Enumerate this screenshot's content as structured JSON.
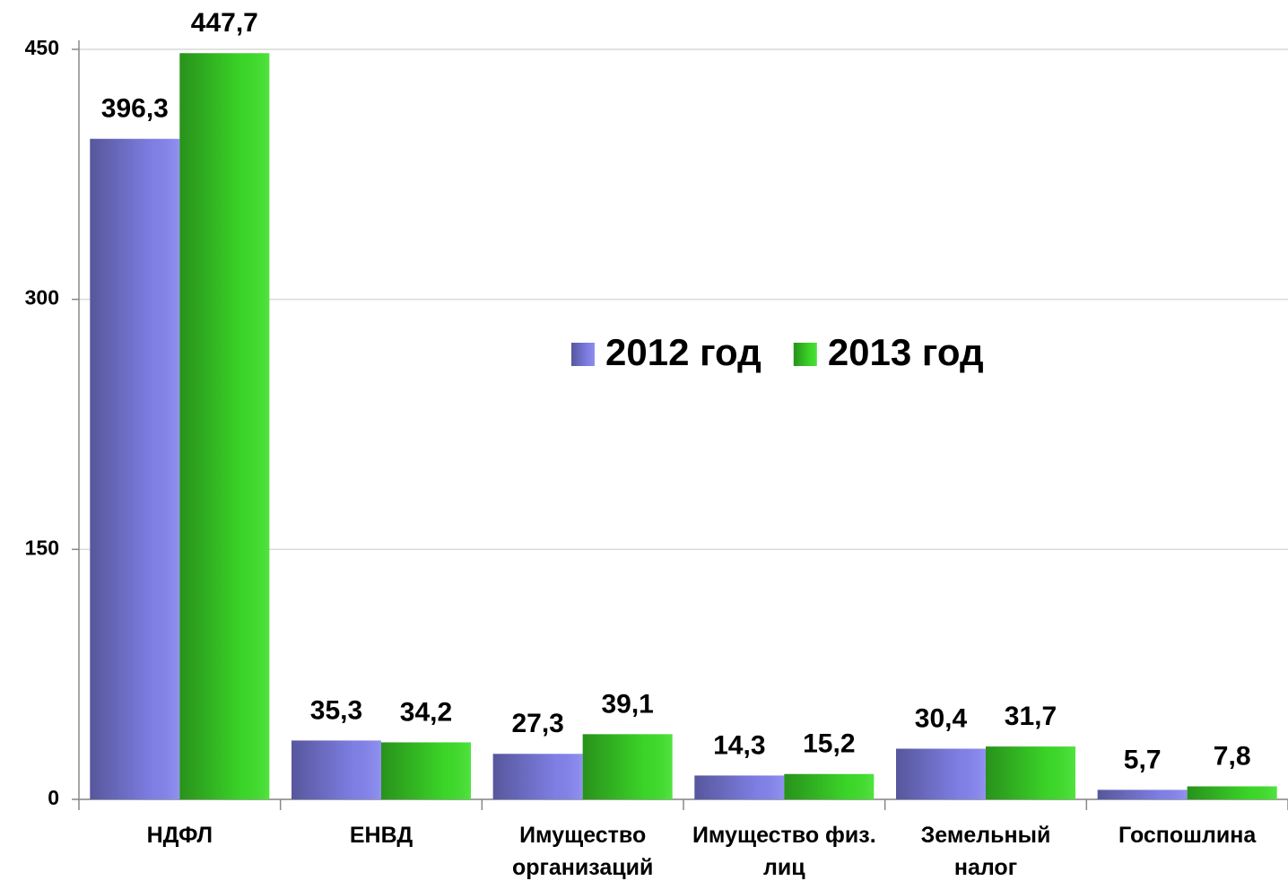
{
  "chart_data": {
    "type": "bar",
    "categories": [
      "НДФЛ",
      "ЕНВД",
      "Имущество организаций",
      "Имущество физ. лиц",
      "Земельный налог",
      "Госпошлина"
    ],
    "series": [
      {
        "name": "2012 год",
        "color": "#8585f0",
        "values": [
          396.3,
          35.3,
          27.3,
          14.3,
          30.4,
          5.7
        ],
        "value_labels": [
          "396,3",
          "35,3",
          "27,3",
          "14,3",
          "30,4",
          "5,7"
        ]
      },
      {
        "name": "2013 год",
        "color": "#3ee02a",
        "values": [
          447.7,
          34.2,
          39.1,
          15.2,
          31.7,
          7.8
        ],
        "value_labels": [
          "447,7",
          "34,2",
          "39,1",
          "15,2",
          "31,7",
          "7,8"
        ]
      }
    ],
    "ylim": [
      0,
      450
    ],
    "yticks": [
      0,
      150,
      300,
      450
    ],
    "grid": true
  }
}
